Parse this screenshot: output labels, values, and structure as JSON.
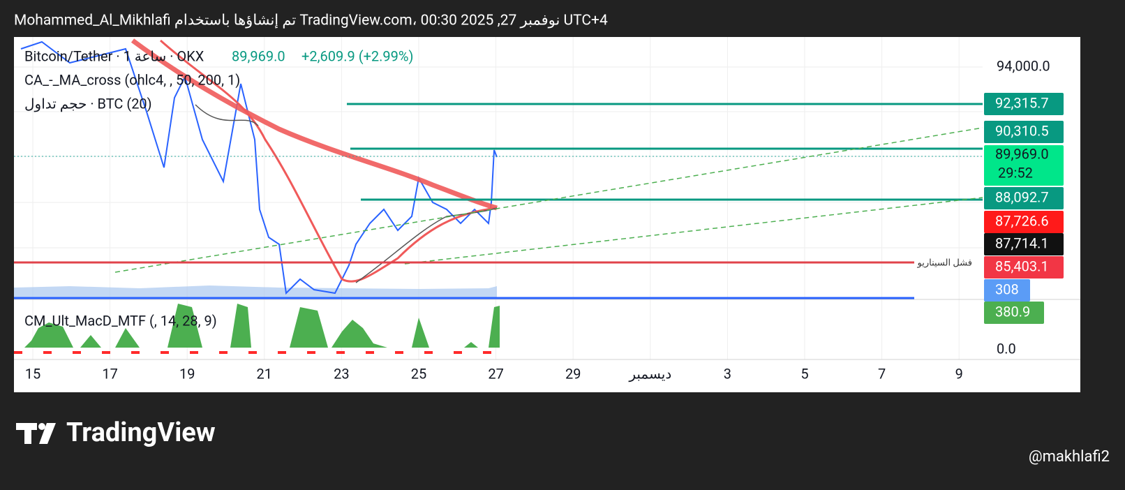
{
  "header": {
    "title": "Mohammed_Al_Mikhlafi تم إنشاؤها باستخدام TradingView.com، 00:30 2025 ,27 نوفمبر UTC+4"
  },
  "legend": {
    "symbol": "Bitcoin/Tether · 1 ساعة · OKX",
    "price": "89,969.0",
    "change": "+2,609.9 (+2.99%)",
    "ma_cross": "CA_-_MA_cross (ohlc4, , 50, 200, 1)",
    "volume": "حجم تداول · BTC (20)",
    "macd": "CM_Ult_MacD_MTF (, 14, 28, 9)"
  },
  "price_axis": {
    "labels": [
      "94,000.0",
      "0.0"
    ]
  },
  "price_tags": [
    {
      "text": "92,315.7",
      "color": "#089981"
    },
    {
      "text": "90,310.5",
      "color": "#089981"
    },
    {
      "text": "89,969.0",
      "color": "#00e68a"
    },
    {
      "text": "88,092.7",
      "color": "#089981"
    },
    {
      "text": "87,726.6",
      "color": "#ff1a1a"
    },
    {
      "text": "87,714.1",
      "color": "#111111"
    },
    {
      "text": "85,403.1",
      "color": "#f23645"
    },
    {
      "text": "308",
      "color": "#5b9cf6"
    },
    {
      "text": "380.9",
      "color": "#4caf50"
    }
  ],
  "countdown": "29:52",
  "annotation": "فشل السيناريو",
  "time_axis": [
    "15",
    "17",
    "19",
    "21",
    "23",
    "25",
    "27",
    "29",
    "ديسمبر",
    "3",
    "5",
    "7",
    "9"
  ],
  "footer": {
    "brand": "TradingView",
    "user": "@makhlafi2"
  }
}
